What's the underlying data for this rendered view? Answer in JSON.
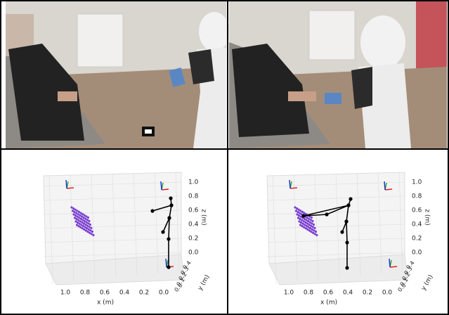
{
  "plots": [
    {
      "x_label": "x (m)",
      "y_label": "y (m)",
      "z_label": "z (m)",
      "x_ticks": [
        "1.0",
        "0.8",
        "0.6",
        "0.4",
        "0.2",
        "0.0"
      ],
      "y_ticks": [
        "0.4",
        "0.3",
        "0.2",
        "0.1",
        "0.0"
      ],
      "z_ticks": [
        "0.0",
        "0.2",
        "0.4",
        "0.6",
        "0.8",
        "1.0"
      ]
    },
    {
      "x_label": "x (m)",
      "y_label": "y (m)",
      "z_label": "z (m)",
      "x_ticks": [
        "1.0",
        "0.8",
        "0.6",
        "0.4",
        "0.2",
        "0.0"
      ],
      "y_ticks": [
        "0.4",
        "0.3",
        "0.2",
        "0.1",
        "0.0"
      ],
      "z_ticks": [
        "0.0",
        "0.2",
        "0.4",
        "0.6",
        "0.8",
        "1.0"
      ]
    }
  ]
}
